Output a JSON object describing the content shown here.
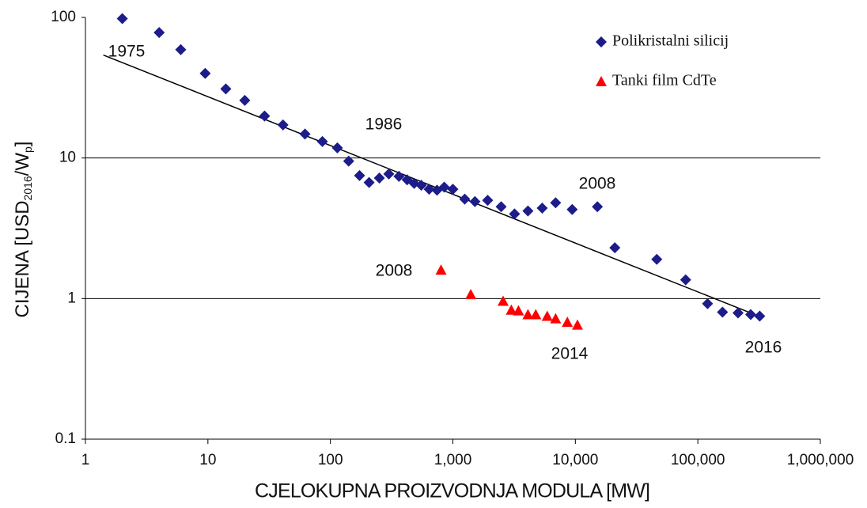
{
  "chart_data": {
    "type": "scatter",
    "x_label": "CJELOKUPNA PROIZVODNJA MODULA [MW]",
    "y_label": {
      "main": "CIJENA [USD",
      "sub1": "2016",
      "mid": "/W",
      "sub2": "p",
      "end": "]"
    },
    "xlog": true,
    "ylog": true,
    "xlim": [
      1,
      1000000
    ],
    "ylim": [
      0.1,
      100
    ],
    "xticks": [
      1,
      10,
      100,
      {
        "value": 1000,
        "label": "1,000"
      },
      {
        "value": 10000,
        "label": "10,000"
      },
      {
        "value": 100000,
        "label": "100,000"
      },
      {
        "value": 1000000,
        "label": "1,000,000"
      }
    ],
    "yticks": [
      0.1,
      1,
      10,
      100
    ],
    "grid": true,
    "legend": "upper right",
    "series": [
      {
        "name": "Polikristalni silicij",
        "color": "#1c1c8a",
        "marker": "diamond",
        "x": [
          2,
          4,
          6,
          9.5,
          14,
          20,
          29,
          41,
          62,
          86,
          114,
          141,
          173,
          207,
          251,
          300,
          363,
          423,
          483,
          552,
          640,
          742,
          850,
          1000,
          1250,
          1514,
          1923,
          2477,
          3187,
          4100,
          5360,
          6900,
          9420,
          15130,
          21000,
          46200,
          79500,
          120000,
          159000,
          213000,
          270000,
          320000
        ],
        "values": [
          98,
          78,
          59,
          40,
          31,
          25.7,
          19.9,
          17.2,
          14.8,
          13.1,
          11.8,
          9.5,
          7.5,
          6.7,
          7.2,
          7.7,
          7.4,
          7.0,
          6.6,
          6.4,
          6.0,
          5.9,
          6.2,
          6.0,
          5.1,
          4.9,
          5.0,
          4.5,
          4.0,
          4.2,
          4.4,
          4.8,
          4.3,
          4.5,
          2.3,
          1.9,
          1.36,
          0.92,
          0.8,
          0.79,
          0.77,
          0.75
        ]
      },
      {
        "name": "Tanki film CdTe",
        "color": "#ff0000",
        "marker": "triangle",
        "x": [
          800,
          1400,
          2570,
          3000,
          3430,
          4100,
          4750,
          5890,
          6900,
          8600,
          10400
        ],
        "values": [
          1.6,
          1.07,
          0.96,
          0.83,
          0.82,
          0.77,
          0.77,
          0.75,
          0.72,
          0.68,
          0.65
        ]
      }
    ],
    "trend_line": {
      "x": [
        1.4,
        314000
      ],
      "values": [
        54,
        0.75
      ]
    },
    "annotations": [
      "1975",
      "1986",
      "2008",
      "2008",
      "2014",
      "2016"
    ]
  }
}
